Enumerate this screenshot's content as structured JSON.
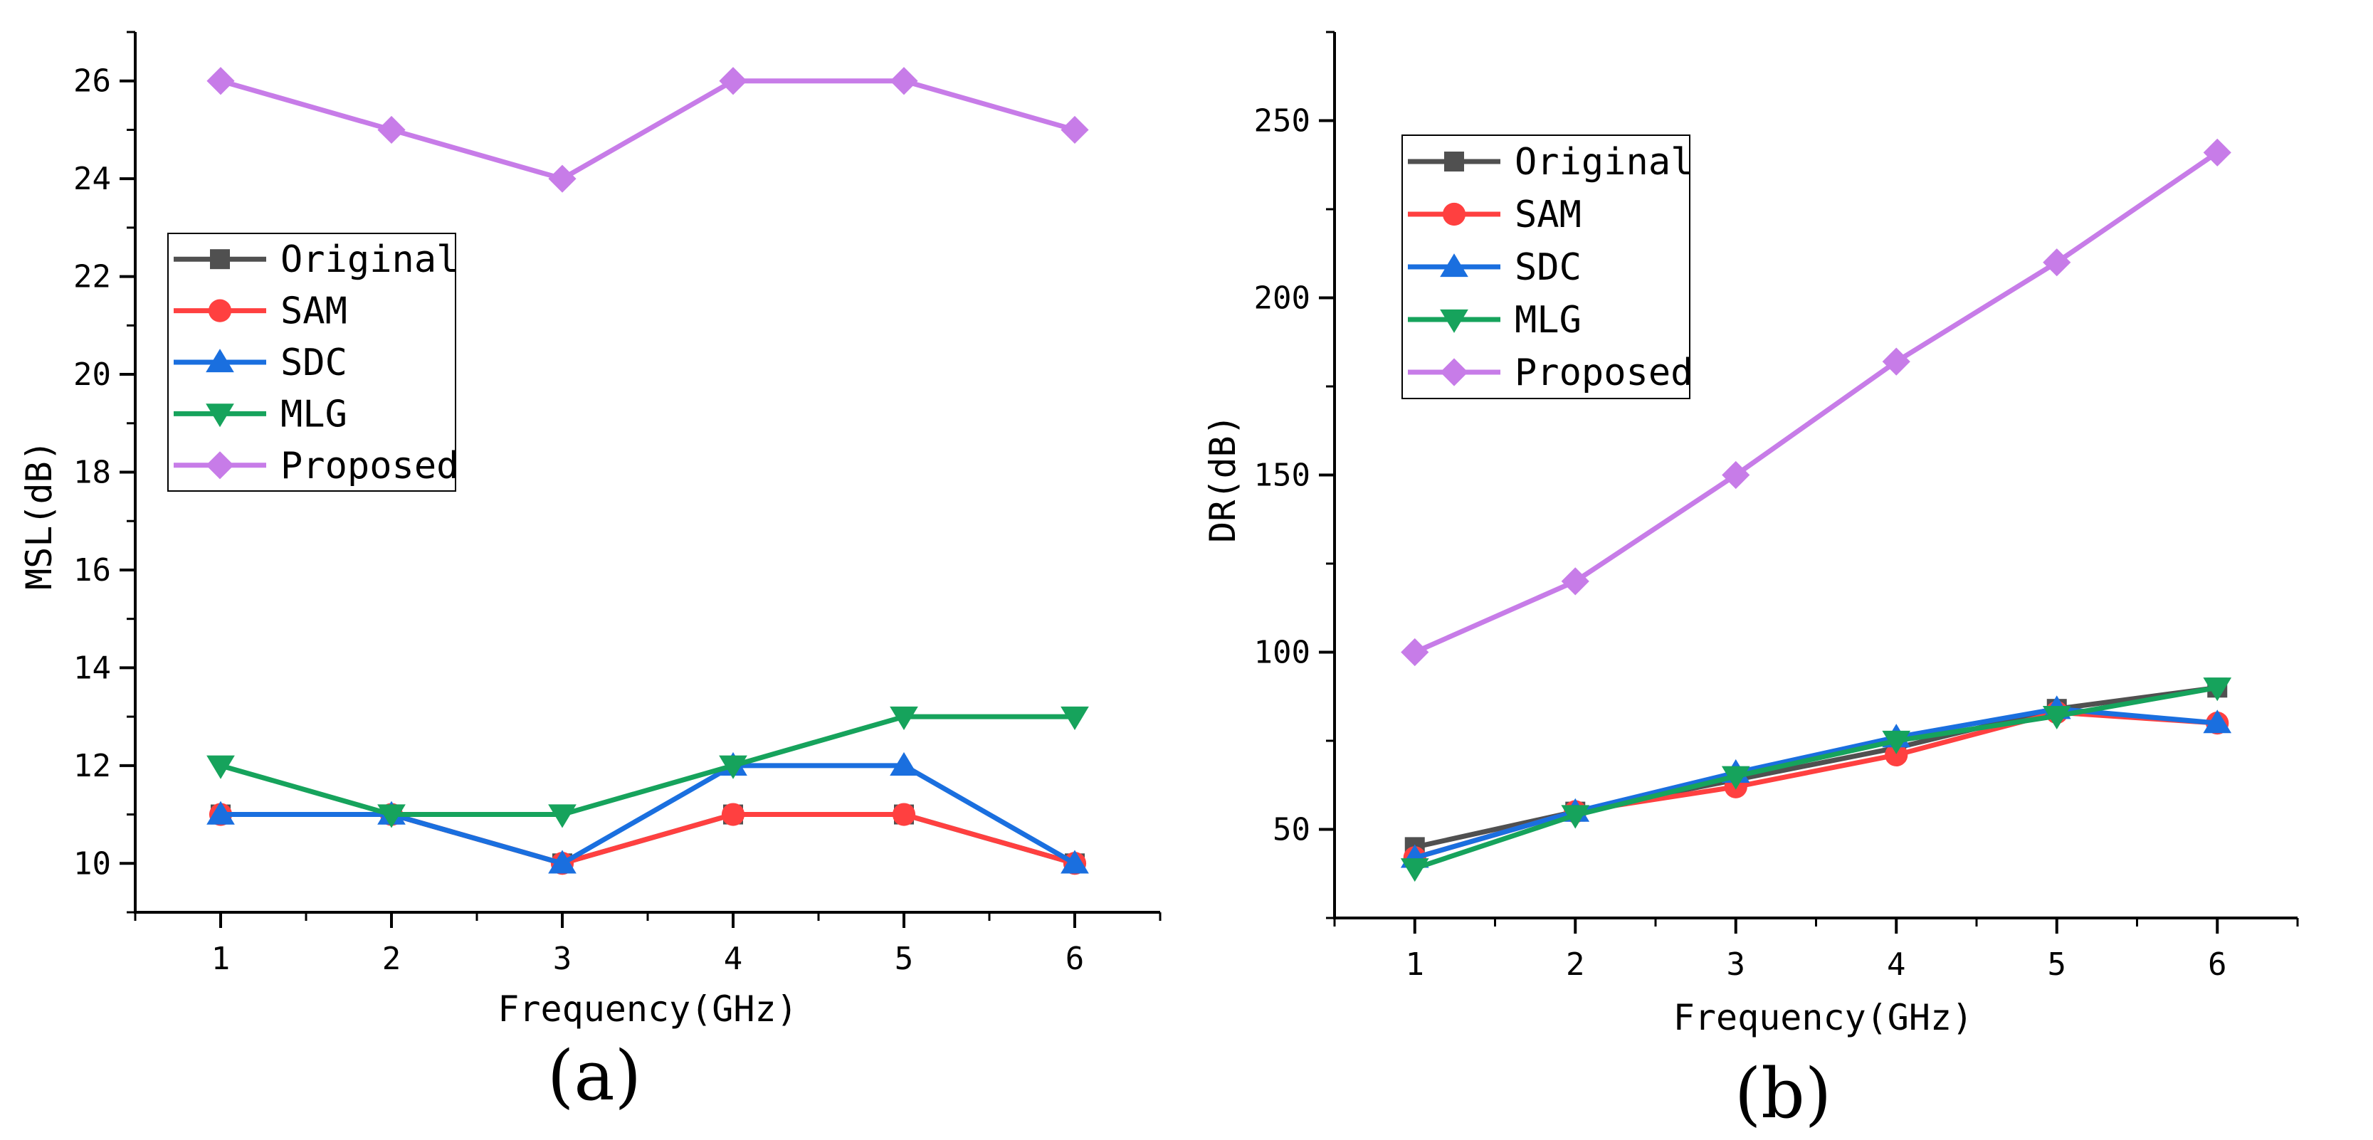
{
  "chart_data": [
    {
      "type": "line",
      "panel_label": "(a)",
      "xlabel": "Frequency(GHz)",
      "ylabel": "MSL(dB)",
      "x": [
        1,
        2,
        3,
        4,
        5,
        6
      ],
      "xticks": [
        "1",
        "2",
        "3",
        "4",
        "5",
        "6"
      ],
      "xlim": [
        0.5,
        6.5
      ],
      "ylim": [
        9.0,
        27.0
      ],
      "yticks": [
        "10",
        "12",
        "14",
        "16",
        "18",
        "20",
        "22",
        "24",
        "26"
      ],
      "legend_position": "middle-left",
      "grid": false,
      "series": [
        {
          "name": "Original",
          "color": "#505050",
          "marker": "square",
          "values": [
            11,
            11,
            10,
            11,
            11,
            10
          ]
        },
        {
          "name": "SAM",
          "color": "#ff4040",
          "marker": "circle",
          "values": [
            11,
            11,
            10,
            11,
            11,
            10
          ]
        },
        {
          "name": "SDC",
          "color": "#1a6fdf",
          "marker": "triangle-up",
          "values": [
            11,
            11,
            10,
            12,
            12,
            10
          ]
        },
        {
          "name": "MLG",
          "color": "#16a35c",
          "marker": "triangle-down",
          "values": [
            12,
            11,
            11,
            12,
            13,
            13
          ]
        },
        {
          "name": "Proposed",
          "color": "#c77ce8",
          "marker": "diamond",
          "values": [
            26,
            25,
            24,
            26,
            26,
            25
          ]
        }
      ]
    },
    {
      "type": "line",
      "panel_label": "(b)",
      "xlabel": "Frequency(GHz)",
      "ylabel": "DR(dB)",
      "x": [
        1,
        2,
        3,
        4,
        5,
        6
      ],
      "xticks": [
        "1",
        "2",
        "3",
        "4",
        "5",
        "6"
      ],
      "xlim": [
        0.5,
        6.5
      ],
      "ylim": [
        25,
        275
      ],
      "yticks": [
        "50",
        "100",
        "150",
        "200",
        "250"
      ],
      "legend_position": "top-left",
      "grid": false,
      "series": [
        {
          "name": "Original",
          "color": "#505050",
          "marker": "square",
          "values": [
            45,
            55,
            64,
            73,
            84,
            90
          ]
        },
        {
          "name": "SAM",
          "color": "#ff4040",
          "marker": "circle",
          "values": [
            42,
            55,
            62,
            71,
            83,
            80
          ]
        },
        {
          "name": "SDC",
          "color": "#1a6fdf",
          "marker": "triangle-up",
          "values": [
            42,
            55,
            66,
            76,
            84,
            80
          ]
        },
        {
          "name": "MLG",
          "color": "#16a35c",
          "marker": "triangle-down",
          "values": [
            39,
            54,
            65,
            75,
            82,
            90
          ]
        },
        {
          "name": "Proposed",
          "color": "#c77ce8",
          "marker": "diamond",
          "values": [
            100,
            120,
            150,
            182,
            210,
            241
          ]
        }
      ]
    }
  ]
}
